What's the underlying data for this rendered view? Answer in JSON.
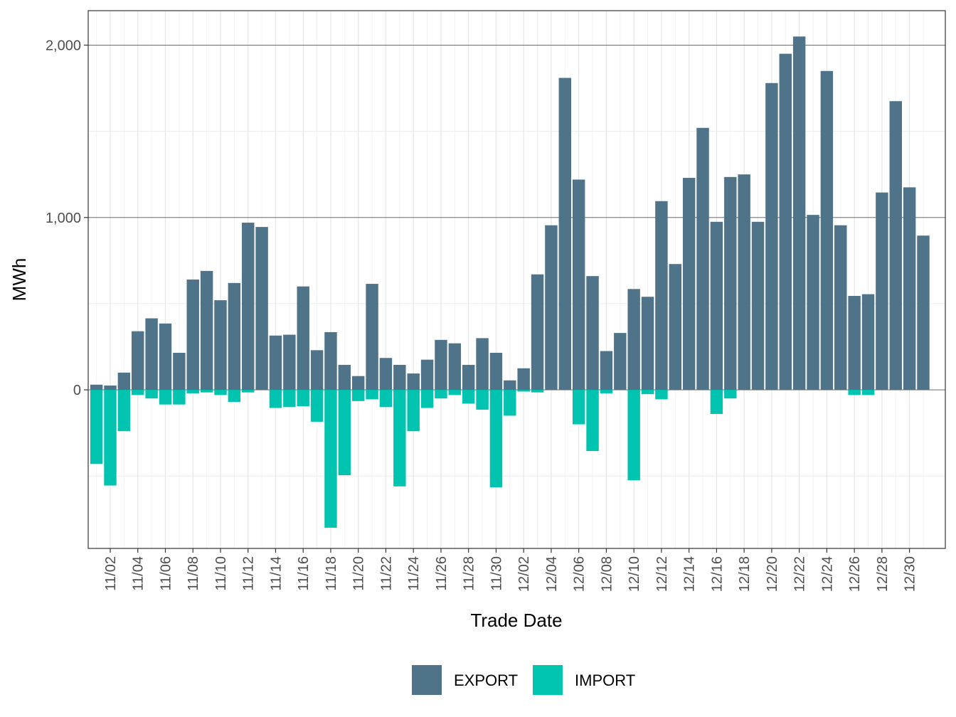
{
  "chart_data": {
    "type": "bar",
    "stacked": true,
    "xlabel": "Trade Date",
    "ylabel": "MWh",
    "ylim": [
      -920,
      2200
    ],
    "y_ticks": [
      0,
      1000,
      2000
    ],
    "y_tick_labels": [
      "0",
      "1,000",
      "2,000"
    ],
    "legend_position": "bottom",
    "categories": [
      "11/01",
      "11/02",
      "11/03",
      "11/04",
      "11/05",
      "11/06",
      "11/07",
      "11/08",
      "11/09",
      "11/10",
      "11/11",
      "11/12",
      "11/13",
      "11/14",
      "11/15",
      "11/16",
      "11/17",
      "11/18",
      "11/19",
      "11/20",
      "11/21",
      "11/22",
      "11/23",
      "11/24",
      "11/25",
      "11/26",
      "11/27",
      "11/28",
      "11/29",
      "11/30",
      "12/01",
      "12/02",
      "12/03",
      "12/04",
      "12/05",
      "12/06",
      "12/07",
      "12/08",
      "12/09",
      "12/10",
      "12/11",
      "12/12",
      "12/13",
      "12/14",
      "12/15",
      "12/16",
      "12/17",
      "12/18",
      "12/19",
      "12/20",
      "12/21",
      "12/22",
      "12/23",
      "12/24",
      "12/25",
      "12/26",
      "12/27",
      "12/28",
      "12/29",
      "12/30",
      "12/31"
    ],
    "tick_labels": [
      "11/02",
      "11/04",
      "11/06",
      "11/08",
      "11/10",
      "11/12",
      "11/14",
      "11/16",
      "11/18",
      "11/20",
      "11/22",
      "11/24",
      "11/26",
      "11/28",
      "11/30",
      "12/02",
      "12/04",
      "12/06",
      "12/08",
      "12/10",
      "12/12",
      "12/14",
      "12/16",
      "12/18",
      "12/20",
      "12/22",
      "12/24",
      "12/26",
      "12/28",
      "12/30"
    ],
    "series": [
      {
        "name": "EXPORT",
        "color": "#4f7389",
        "values": [
          30,
          25,
          100,
          340,
          415,
          385,
          215,
          640,
          690,
          520,
          620,
          970,
          945,
          315,
          320,
          600,
          230,
          335,
          145,
          80,
          615,
          185,
          145,
          95,
          175,
          290,
          270,
          145,
          300,
          215,
          55,
          125,
          670,
          955,
          1810,
          1220,
          660,
          225,
          330,
          585,
          540,
          1095,
          730,
          1230,
          1520,
          975,
          1235,
          1250,
          975,
          1780,
          1950,
          2050,
          1015,
          1850,
          955,
          545,
          555,
          1145,
          1675,
          1175,
          895
        ]
      },
      {
        "name": "IMPORT",
        "color": "#00c4b0",
        "values": [
          -430,
          -555,
          -240,
          -30,
          -50,
          -85,
          -85,
          -20,
          -15,
          -30,
          -70,
          -15,
          0,
          -105,
          -100,
          -95,
          -185,
          -800,
          -495,
          -65,
          -55,
          -100,
          -560,
          -240,
          -105,
          -50,
          -30,
          -80,
          -115,
          -565,
          -150,
          -10,
          -15,
          0,
          0,
          -200,
          -355,
          -20,
          0,
          -525,
          -25,
          -55,
          0,
          0,
          0,
          -140,
          -50,
          0,
          0,
          0,
          0,
          0,
          0,
          0,
          0,
          -30,
          -30,
          0,
          0,
          0,
          0
        ]
      }
    ]
  }
}
